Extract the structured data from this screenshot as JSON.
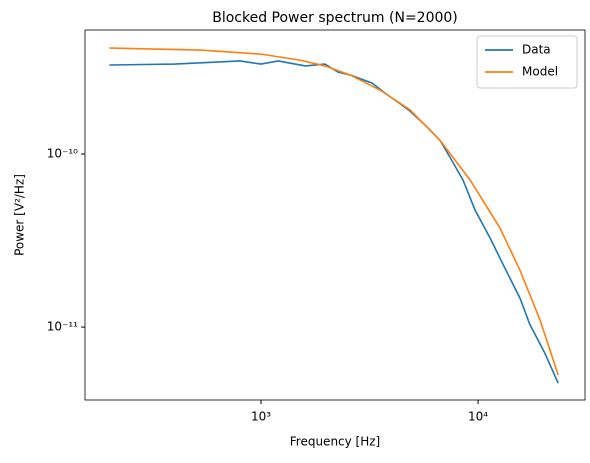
{
  "chart_data": {
    "type": "line",
    "title": "Blocked Power spectrum (N=2000)",
    "xlabel": "Frequency [Hz]",
    "ylabel": "Power [V²/Hz]",
    "xscale": "log",
    "yscale": "log",
    "xlim": [
      154.5,
      31100
    ],
    "ylim": [
      3.79e-12,
      5.21e-10
    ],
    "xticks": [
      {
        "value": 1000,
        "label": "10³"
      },
      {
        "value": 10000,
        "label": "10⁴"
      }
    ],
    "yticks": [
      {
        "value": 1e-11,
        "label": "10⁻¹¹"
      },
      {
        "value": 1e-10,
        "label": "10⁻¹⁰"
      }
    ],
    "legend": "upper right",
    "series": [
      {
        "name": "Data",
        "color": "#1f77b4",
        "x": [
          200,
          400,
          800,
          1000,
          1200,
          1600,
          1970,
          2260,
          2580,
          3250,
          3730,
          4380,
          4860,
          5700,
          6680,
          7420,
          8520,
          9690,
          11360,
          13300,
          15600,
          17300,
          20300,
          23400
        ],
        "values": [
          3.27e-10,
          3.31e-10,
          3.45e-10,
          3.31e-10,
          3.45e-10,
          3.23e-10,
          3.31e-10,
          2.98e-10,
          2.86e-10,
          2.57e-10,
          2.25e-10,
          1.95e-10,
          1.77e-10,
          1.47e-10,
          1.2e-10,
          9.6e-11,
          7.08e-11,
          4.74e-11,
          3.27e-11,
          2.19e-11,
          1.47e-11,
          1.04e-11,
          7.08e-12,
          4.74e-12
        ]
      },
      {
        "name": "Model",
        "color": "#ff7f0e",
        "x": [
          200,
          525,
          1000,
          1510,
          1970,
          2580,
          3540,
          4860,
          6680,
          9190,
          12630,
          15600,
          19300,
          23400
        ],
        "values": [
          4.1e-10,
          3.99e-10,
          3.78e-10,
          3.49e-10,
          3.23e-10,
          2.86e-10,
          2.34e-10,
          1.8e-10,
          1.2e-10,
          7.08e-11,
          3.73e-11,
          2.13e-11,
          1.1e-11,
          5.28e-12
        ]
      }
    ]
  }
}
